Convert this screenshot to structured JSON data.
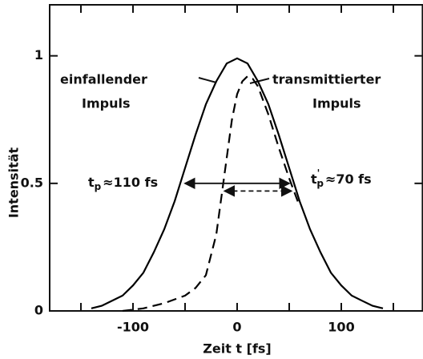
{
  "chart_data": {
    "type": "line",
    "xlabel": "Zeit t [fs]",
    "ylabel": "Intensität",
    "xlim": [
      -180,
      178
    ],
    "ylim": [
      0,
      1.2
    ],
    "xticks": [
      -100,
      0,
      100
    ],
    "xminorticks": [
      -150,
      -50,
      50,
      150
    ],
    "yticks": [
      0,
      0.5,
      1
    ],
    "series": [
      {
        "name": "einfallender Impuls",
        "color": "#000000",
        "dash": false,
        "x": [
          -140,
          -130,
          -120,
          -110,
          -100,
          -90,
          -80,
          -70,
          -60,
          -50,
          -40,
          -30,
          -20,
          -10,
          0,
          10,
          20,
          30,
          40,
          50,
          60,
          70,
          80,
          90,
          100,
          110,
          120,
          130,
          140
        ],
        "values": [
          0.01,
          0.02,
          0.04,
          0.06,
          0.1,
          0.15,
          0.23,
          0.32,
          0.43,
          0.56,
          0.69,
          0.81,
          0.9,
          0.97,
          0.99,
          0.97,
          0.9,
          0.81,
          0.69,
          0.56,
          0.43,
          0.32,
          0.23,
          0.15,
          0.1,
          0.06,
          0.04,
          0.02,
          0.01
        ]
      },
      {
        "name": "transmittierter Impuls",
        "color": "#000000",
        "dash": true,
        "x": [
          -110,
          -90,
          -70,
          -50,
          -40,
          -30,
          -20,
          -15,
          -10,
          -5,
          0,
          5,
          10,
          15,
          20,
          30,
          40,
          50,
          60
        ],
        "values": [
          0,
          0.01,
          0.03,
          0.06,
          0.09,
          0.14,
          0.3,
          0.45,
          0.6,
          0.75,
          0.85,
          0.9,
          0.92,
          0.91,
          0.88,
          0.77,
          0.64,
          0.52,
          0.41
        ]
      }
    ],
    "annotations": [
      {
        "text": "einfallender"
      },
      {
        "text": "Impuls"
      },
      {
        "text": "transmittierter"
      },
      {
        "text": "Impuls"
      },
      {
        "main": "t",
        "sub": "p",
        "rest": "≈110 fs",
        "x1": -50,
        "x2": 50,
        "y": 0.5
      },
      {
        "main": "t",
        "sub": "p",
        "prime": "'",
        "rest": "≈70 fs",
        "x1": -12,
        "x2": 52,
        "y": 0.47
      }
    ]
  }
}
